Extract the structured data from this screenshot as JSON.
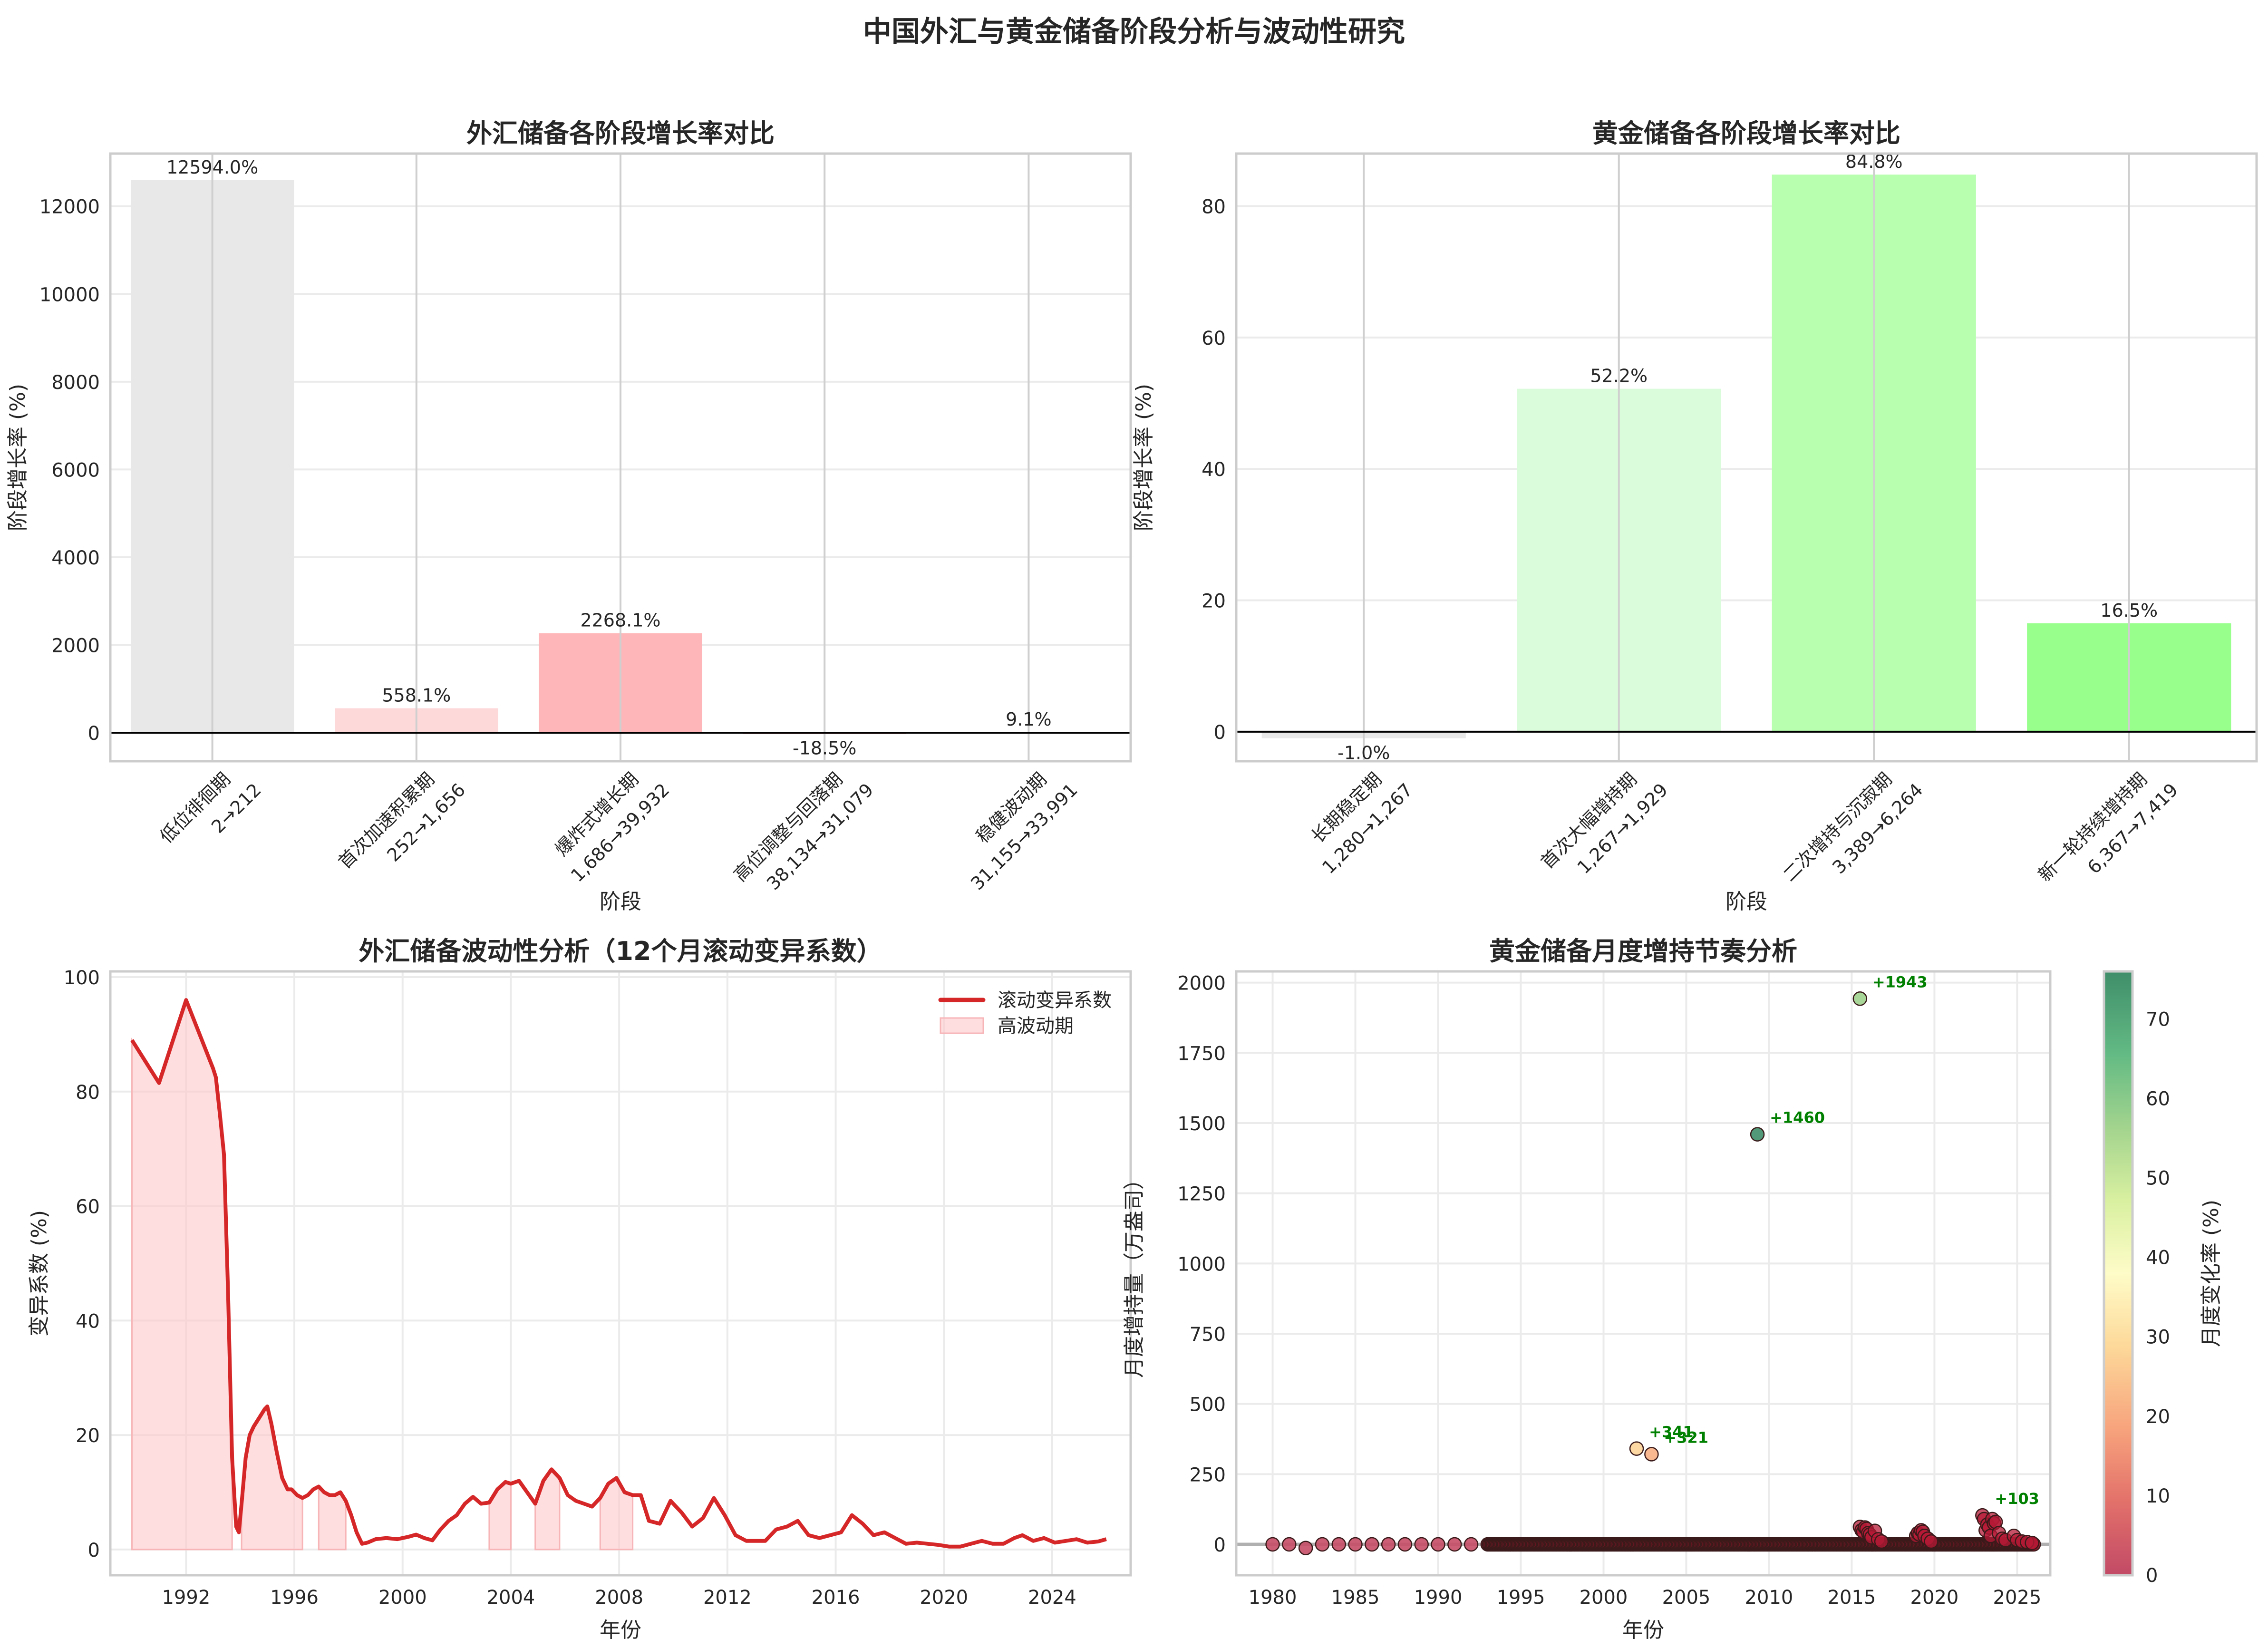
{
  "suptitle": "中国外汇与黄金储备阶段分析与波动性研究",
  "chart_data": [
    {
      "id": "fx_stage_growth",
      "type": "bar",
      "title": "外汇储备各阶段增长率对比",
      "xlabel": "阶段",
      "ylabel": "阶段增长率 (%)",
      "categories": [
        "低位徘徊期\n2→212",
        "首次加速积累期\n252→1,656",
        "爆炸式增长期\n1,686→39,932",
        "高位调整与回落期\n38,134→31,079",
        "稳健波动期\n31,155→33,991"
      ],
      "stage_names": [
        "低位徘徊期",
        "首次加速积累期",
        "爆炸式增长期",
        "高位调整与回落期",
        "稳健波动期"
      ],
      "stage_ranges": [
        "2→212",
        "252→1,656",
        "1,686→39,932",
        "38,134→31,079",
        "31,155→33,991"
      ],
      "values": [
        12594.0,
        558.1,
        2268.1,
        -18.5,
        9.1
      ],
      "value_labels": [
        "12594.0%",
        "558.1%",
        "2268.1%",
        "-18.5%",
        "9.1%"
      ],
      "colors": [
        "#e8e8e8",
        "#fed9da",
        "#ffb6b8",
        "#f4a8a8",
        "#ffe5e5"
      ],
      "yticks": [
        0,
        2000,
        4000,
        6000,
        8000,
        10000,
        12000
      ],
      "ylim": [
        -650,
        13200
      ],
      "grid": true
    },
    {
      "id": "gold_stage_growth",
      "type": "bar",
      "title": "黄金储备各阶段增长率对比",
      "xlabel": "阶段",
      "ylabel": "阶段增长率 (%)",
      "categories": [
        "长期稳定期\n1,280→1,267",
        "首次大幅增持期\n1,267→1,929",
        "二次增持与沉寂期\n3,389→6,264",
        "新一轮持续增持期\n6,367→7,419"
      ],
      "stage_names": [
        "长期稳定期",
        "首次大幅增持期",
        "二次增持与沉寂期",
        "新一轮持续增持期"
      ],
      "stage_ranges": [
        "1,280→1,267",
        "1,267→1,929",
        "3,389→6,264",
        "6,367→7,419"
      ],
      "values": [
        -1.0,
        52.2,
        84.8,
        16.5
      ],
      "value_labels": [
        "-1.0%",
        "52.2%",
        "84.8%",
        "16.5%"
      ],
      "colors": [
        "#e8e8e8",
        "#dbfcdb",
        "#b8ffb0",
        "#98ff8c"
      ],
      "yticks": [
        0,
        20,
        40,
        60,
        80
      ],
      "ylim": [
        -4.5,
        88
      ],
      "grid": true
    },
    {
      "id": "fx_volatility",
      "type": "line",
      "title": "外汇储备波动性分析（12个月滚动变异系数）",
      "xlabel": "年份",
      "ylabel": "变异系数 (%)",
      "xticks": [
        1992,
        1996,
        2000,
        2004,
        2008,
        2012,
        2016,
        2020,
        2024
      ],
      "yticks": [
        0,
        20,
        40,
        60,
        80,
        100
      ],
      "xlim": [
        1989.2,
        2026.9
      ],
      "ylim": [
        -4.5,
        101
      ],
      "legend": [
        "滚动变异系数",
        "高波动期"
      ],
      "legend_position": "upper right",
      "line_color": "#d62728",
      "fill_color": "#ffc8cc",
      "series": [
        {
          "name": "滚动变异系数",
          "x": [
            1990.0,
            1991.0,
            1992.0,
            1993.0,
            1993.1,
            1993.25,
            1993.4,
            1993.55,
            1993.7,
            1993.85,
            1993.95,
            1994.05,
            1994.2,
            1994.35,
            1994.5,
            1994.7,
            1994.9,
            1995.0,
            1995.15,
            1995.35,
            1995.55,
            1995.75,
            1995.9,
            1996.1,
            1996.3,
            1996.5,
            1996.7,
            1996.9,
            1997.1,
            1997.3,
            1997.5,
            1997.7,
            1997.9,
            1998.1,
            1998.3,
            1998.5,
            1998.7,
            1999.0,
            1999.4,
            1999.8,
            2000.2,
            2000.5,
            2000.8,
            2001.1,
            2001.4,
            2001.7,
            2002.0,
            2002.3,
            2002.6,
            2002.9,
            2003.2,
            2003.5,
            2003.8,
            2004.0,
            2004.3,
            2004.6,
            2004.9,
            2005.2,
            2005.5,
            2005.8,
            2006.1,
            2006.4,
            2006.7,
            2007.0,
            2007.3,
            2007.6,
            2007.9,
            2008.2,
            2008.5,
            2008.8,
            2009.1,
            2009.5,
            2009.9,
            2010.3,
            2010.7,
            2011.1,
            2011.5,
            2011.9,
            2012.3,
            2012.7,
            2013.0,
            2013.4,
            2013.8,
            2014.2,
            2014.6,
            2015.0,
            2015.4,
            2015.8,
            2016.2,
            2016.6,
            2017.0,
            2017.4,
            2017.8,
            2018.2,
            2018.6,
            2019.0,
            2019.4,
            2019.8,
            2020.2,
            2020.6,
            2021.0,
            2021.4,
            2021.8,
            2022.2,
            2022.6,
            2022.9,
            2023.3,
            2023.7,
            2024.1,
            2024.5,
            2024.9,
            2025.3,
            2025.7,
            2026.0
          ],
          "y": [
            89,
            81.5,
            96,
            84,
            82.5,
            76,
            69,
            45,
            16,
            4,
            3,
            8,
            16,
            20,
            21.5,
            23,
            24.5,
            25,
            22,
            17,
            12.5,
            10.5,
            10.5,
            9.5,
            9,
            9.5,
            10.5,
            11,
            10,
            9.5,
            9.5,
            10,
            8.5,
            6,
            3,
            1,
            1.2,
            1.8,
            2.0,
            1.8,
            2.2,
            2.6,
            2.0,
            1.6,
            3.5,
            5.0,
            6.0,
            8.0,
            9.2,
            8.0,
            8.2,
            10.5,
            11.8,
            11.5,
            12.0,
            10.0,
            8.0,
            12.0,
            14.0,
            12.5,
            9.5,
            8.5,
            8.0,
            7.5,
            9.0,
            11.5,
            12.5,
            10.0,
            9.5,
            9.5,
            5.0,
            4.5,
            8.5,
            6.5,
            4.0,
            5.5,
            9.0,
            6.0,
            2.5,
            1.5,
            1.5,
            1.5,
            3.5,
            4.0,
            5.0,
            2.5,
            2.0,
            2.5,
            3.0,
            6.0,
            4.5,
            2.5,
            3.0,
            2.0,
            1.0,
            1.2,
            1.0,
            0.8,
            0.5,
            0.5,
            1.0,
            1.5,
            1.0,
            1.0,
            2.0,
            2.5,
            1.5,
            2.0,
            1.2,
            1.5,
            1.8,
            1.2,
            1.4,
            1.8
          ]
        }
      ],
      "high_volatility_periods": [
        [
          1990.0,
          1993.8
        ],
        [
          1994.0,
          1996.3
        ],
        [
          1996.8,
          1997.9
        ],
        [
          2003.0,
          2004.2
        ],
        [
          2004.9,
          2005.9
        ],
        [
          2007.2,
          2008.6
        ]
      ]
    },
    {
      "id": "gold_monthly_increase",
      "type": "scatter",
      "title": "黄金储备月度增持节奏分析",
      "xlabel": "年份",
      "ylabel": "月度增持量（万盎司）",
      "xticks": [
        1980,
        1985,
        1990,
        1995,
        2000,
        2005,
        2010,
        2015,
        2020,
        2025
      ],
      "yticks": [
        0,
        250,
        500,
        750,
        1000,
        1250,
        1500,
        1750,
        2000
      ],
      "xlim": [
        1977.8,
        2027.0
      ],
      "ylim": [
        -110,
        2040
      ],
      "colorbar": {
        "label": "月度变化率 (%)",
        "ticks": [
          0,
          10,
          20,
          30,
          40,
          50,
          60,
          70
        ],
        "range": [
          0,
          76
        ],
        "cmap": "RdYlGn"
      },
      "annotations": [
        {
          "text": "+1943",
          "x": 2015.5,
          "y": 1943
        },
        {
          "text": "+1460",
          "x": 2009.3,
          "y": 1460
        },
        {
          "text": "+341",
          "x": 2002.0,
          "y": 341
        },
        {
          "text": "+321",
          "x": 2002.9,
          "y": 321
        },
        {
          "text": "+103",
          "x": 2022.9,
          "y": 103
        }
      ],
      "annotation_color": "#008000",
      "points_highlight": [
        {
          "x": 2015.5,
          "y": 1943,
          "c": 57
        },
        {
          "x": 2009.3,
          "y": 1460,
          "c": 76
        },
        {
          "x": 2002.0,
          "y": 341,
          "c": 28
        },
        {
          "x": 2002.9,
          "y": 321,
          "c": 21
        }
      ],
      "points_annual": [
        {
          "x": 1980,
          "y": 0
        },
        {
          "x": 1981,
          "y": 0
        },
        {
          "x": 1982,
          "y": -13
        },
        {
          "x": 1983,
          "y": 0
        },
        {
          "x": 1984,
          "y": 0
        },
        {
          "x": 1985,
          "y": 0
        },
        {
          "x": 1986,
          "y": 0
        },
        {
          "x": 1987,
          "y": 0
        },
        {
          "x": 1988,
          "y": 0
        },
        {
          "x": 1989,
          "y": 0
        },
        {
          "x": 1990,
          "y": 0
        },
        {
          "x": 1991,
          "y": 0
        },
        {
          "x": 1992,
          "y": 0
        }
      ],
      "monthly_zero_range": [
        1993.0,
        2026.0
      ],
      "clusters": [
        {
          "x": [
            2015.5,
            2015.6,
            2015.7,
            2015.8,
            2015.9,
            2016.0,
            2016.1,
            2016.2,
            2016.4,
            2016.6,
            2016.8
          ],
          "y": [
            62,
            50,
            45,
            60,
            55,
            40,
            35,
            25,
            48,
            18,
            10
          ]
        },
        {
          "x": [
            2018.9,
            2019.0,
            2019.1,
            2019.2,
            2019.3,
            2019.4,
            2019.6,
            2019.8
          ],
          "y": [
            30,
            40,
            35,
            50,
            45,
            30,
            20,
            10
          ]
        },
        {
          "x": [
            2022.9,
            2023.0,
            2023.1,
            2023.2,
            2023.3,
            2023.4,
            2023.5,
            2023.6,
            2023.7,
            2023.9,
            2024.1,
            2024.3,
            2024.8,
            2025.0,
            2025.3,
            2025.6,
            2025.9
          ],
          "y": [
            103,
            90,
            50,
            70,
            60,
            30,
            90,
            75,
            80,
            40,
            20,
            15,
            30,
            15,
            10,
            8,
            5
          ]
        }
      ]
    }
  ]
}
